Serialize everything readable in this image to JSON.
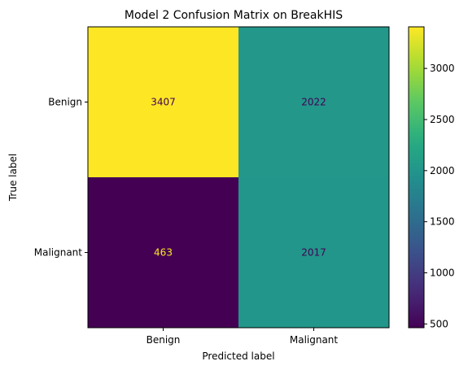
{
  "chart_data": {
    "type": "heatmap",
    "title": "Model 2 Confusion Matrix on BreakHIS",
    "xlabel": "Predicted label",
    "ylabel": "True label",
    "x_categories": [
      "Benign",
      "Malignant"
    ],
    "y_categories": [
      "Benign",
      "Malignant"
    ],
    "values": [
      [
        3407,
        2022
      ],
      [
        463,
        2017
      ]
    ],
    "colormap": "viridis",
    "colorbar": {
      "vmin": 463,
      "vmax": 3407,
      "ticks": [
        500,
        1000,
        1500,
        2000,
        2500,
        3000
      ],
      "tick_labels": [
        "500",
        "1000",
        "1500",
        "2000",
        "2500",
        "3000"
      ]
    },
    "text_colors": {
      "on_dark": "#fde725",
      "on_light": "#440154"
    },
    "grid": false
  }
}
